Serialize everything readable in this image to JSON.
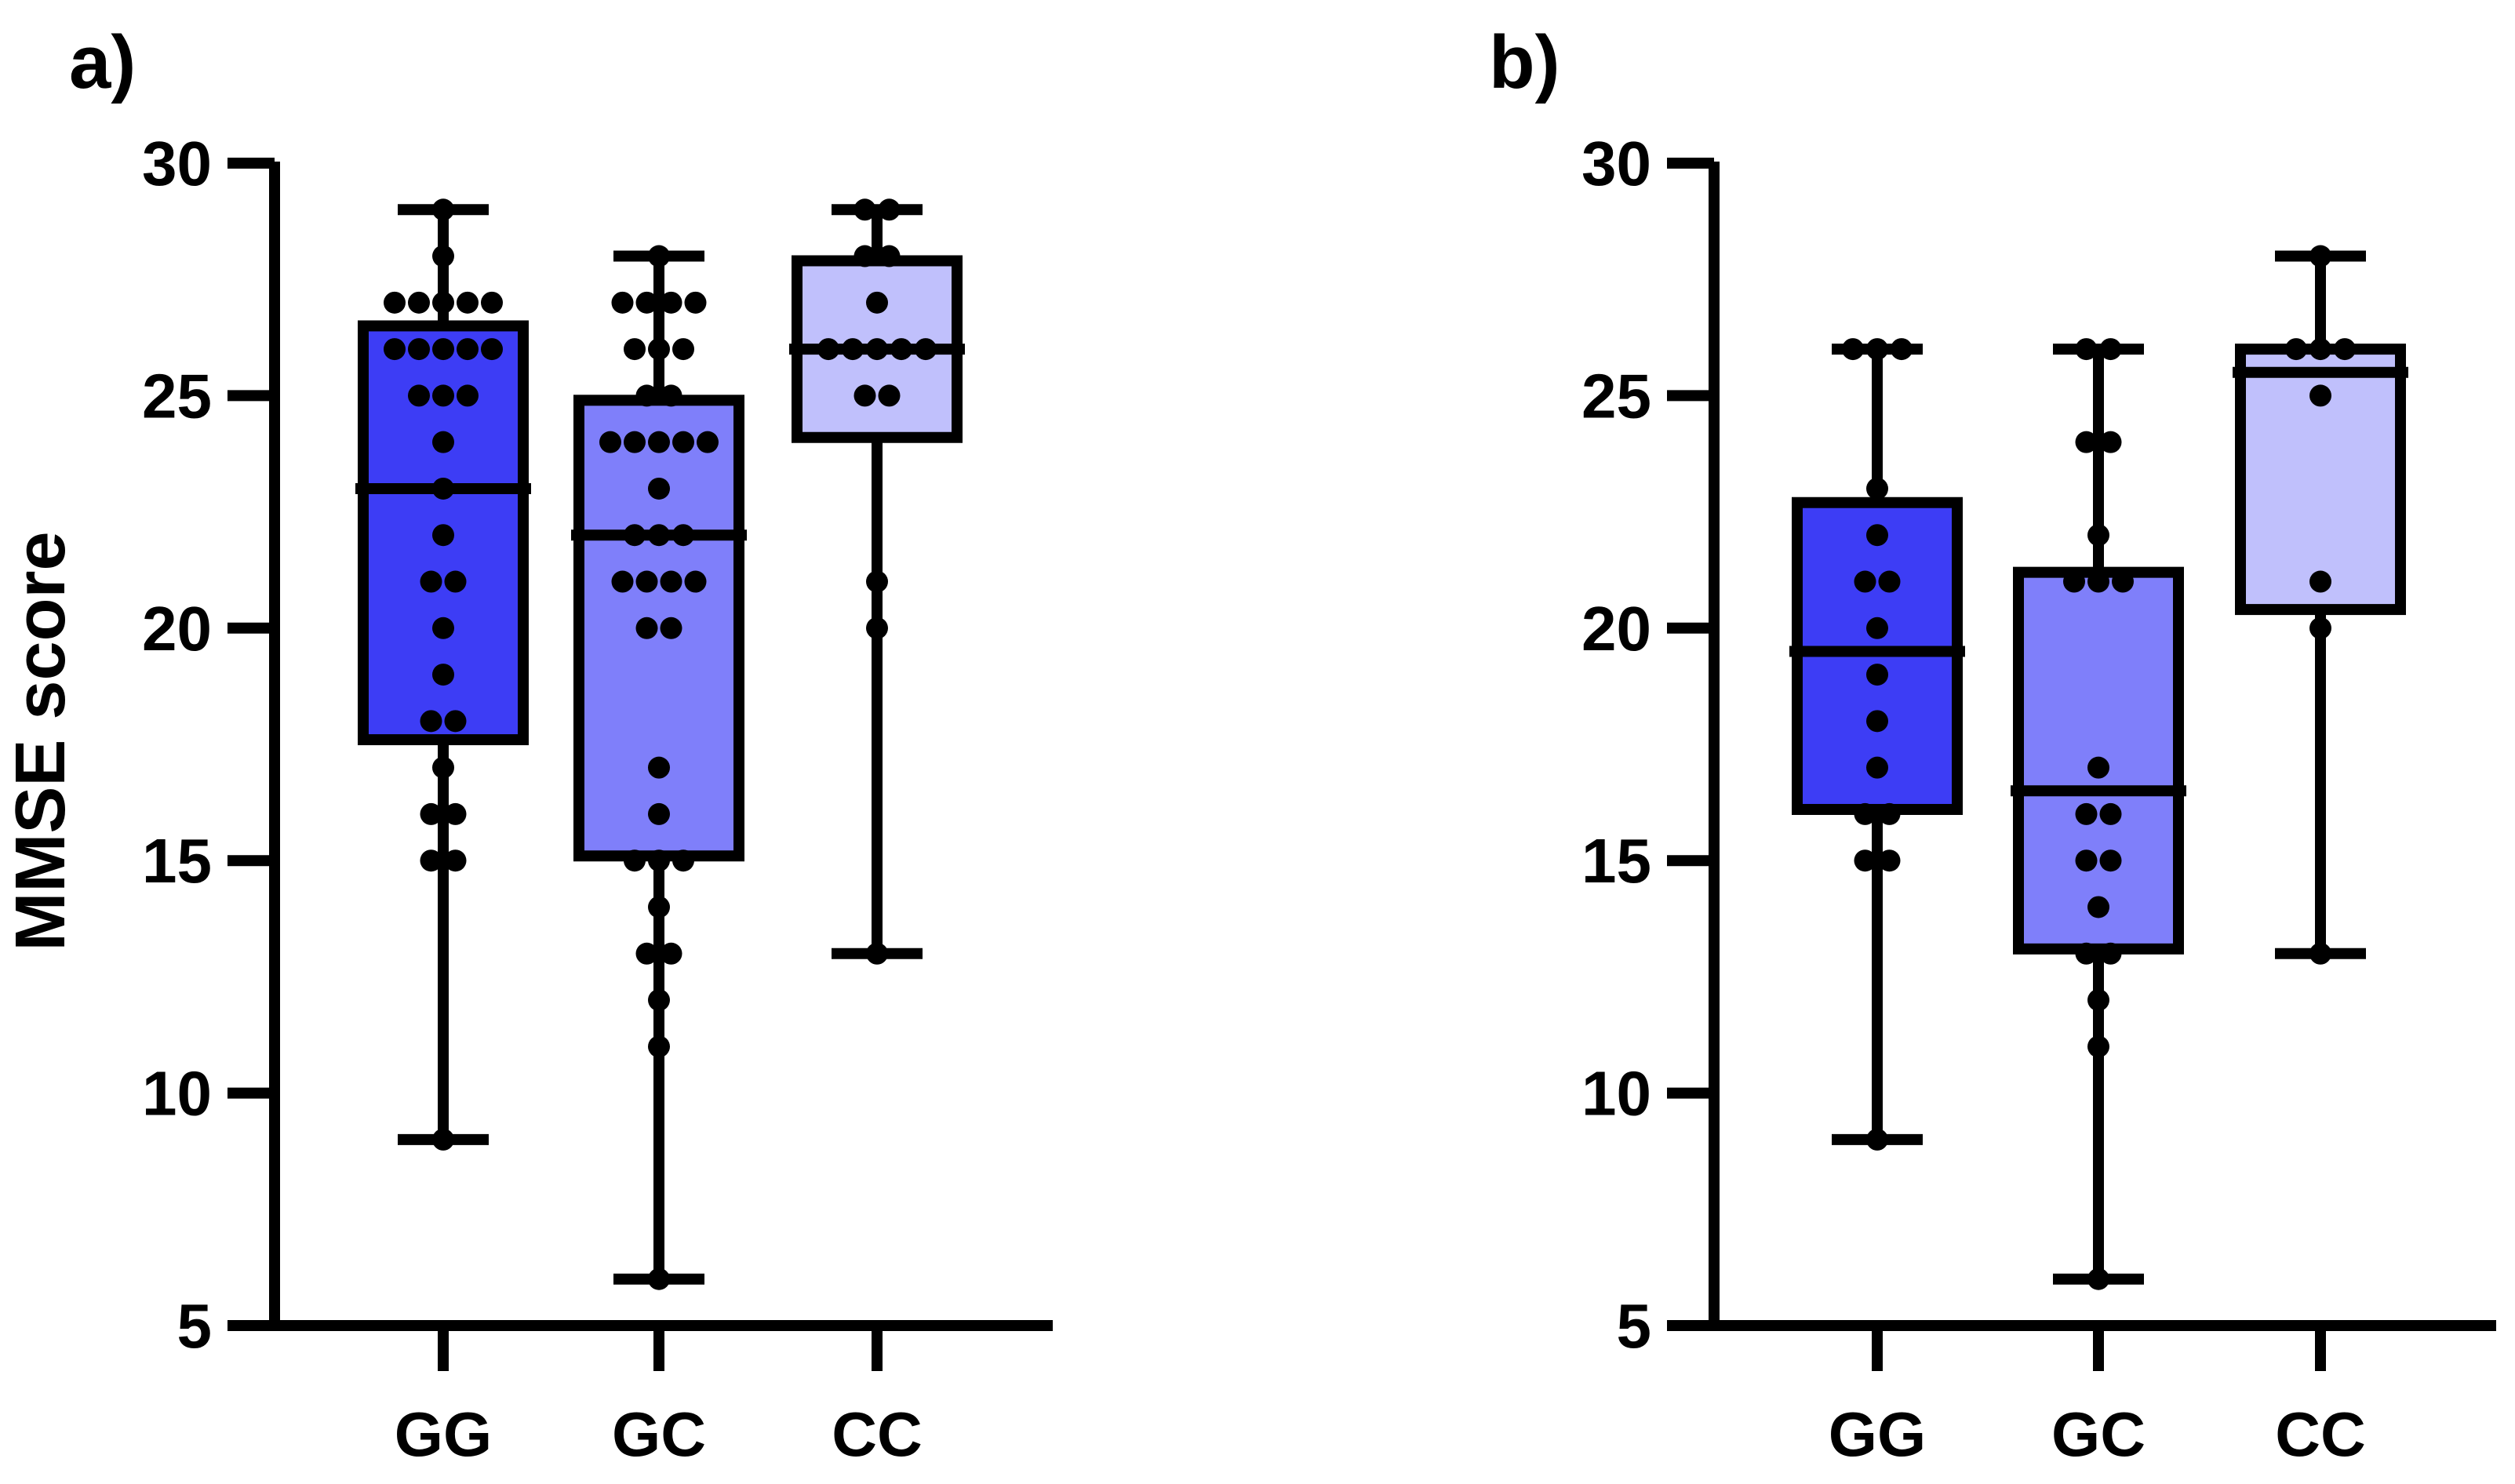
{
  "chart_data": [
    {
      "type": "box",
      "panel_label": "a)",
      "ylabel": "MMSE score",
      "xlabel": "",
      "ylim": [
        5,
        30
      ],
      "yticks": [
        5,
        10,
        15,
        20,
        25,
        30
      ],
      "categories": [
        "GG",
        "GC",
        "CC"
      ],
      "colors": [
        "#3D3DF5",
        "#7F7FFA",
        "#C0C0FC"
      ],
      "boxes": [
        {
          "category": "GG",
          "whisker_low": 9,
          "q1": 17.6,
          "median": 23,
          "q3": 26.5,
          "whisker_high": 29
        },
        {
          "category": "GC",
          "whisker_low": 6,
          "q1": 15.1,
          "median": 22,
          "q3": 24.9,
          "whisker_high": 28
        },
        {
          "category": "CC",
          "whisker_low": 13,
          "q1": 24.1,
          "median": 26,
          "q3": 27.9,
          "whisker_high": 29
        }
      ],
      "points": [
        [
          29,
          28,
          27,
          27,
          27,
          27,
          27,
          26,
          26,
          26,
          26,
          26,
          25,
          25,
          25,
          24,
          23,
          22,
          21,
          21,
          20,
          19,
          18,
          18,
          17,
          16,
          16,
          15,
          15,
          9
        ],
        [
          28,
          27,
          27,
          27,
          27,
          26,
          26,
          26,
          25,
          25,
          24,
          24,
          24,
          24,
          24,
          23,
          22,
          22,
          22,
          21,
          21,
          21,
          21,
          20,
          20,
          17,
          16,
          15,
          15,
          15,
          14,
          13,
          13,
          12,
          11,
          6
        ],
        [
          29,
          29,
          28,
          28,
          27,
          26,
          26,
          26,
          26,
          26,
          25,
          25,
          21,
          20,
          13
        ]
      ]
    },
    {
      "type": "box",
      "panel_label": "b)",
      "ylabel": "",
      "xlabel": "",
      "ylim": [
        5,
        30
      ],
      "yticks": [
        5,
        10,
        15,
        20,
        25,
        30
      ],
      "categories": [
        "GG",
        "GC",
        "CC"
      ],
      "colors": [
        "#3D3DF5",
        "#7F7FFA",
        "#C0C0FC"
      ],
      "boxes": [
        {
          "category": "GG",
          "whisker_low": 9,
          "q1": 16.1,
          "median": 19.5,
          "q3": 22.7,
          "whisker_high": 26
        },
        {
          "category": "GC",
          "whisker_low": 6,
          "q1": 13.1,
          "median": 16.5,
          "q3": 21.2,
          "whisker_high": 26
        },
        {
          "category": "CC",
          "whisker_low": 13,
          "q1": 20.4,
          "median": 25.5,
          "q3": 26,
          "whisker_high": 28
        }
      ],
      "points": [
        [
          26,
          26,
          26,
          23,
          22,
          21,
          21,
          20,
          19,
          18,
          17,
          16,
          16,
          15,
          15,
          9
        ],
        [
          26,
          26,
          24,
          24,
          22,
          21,
          21,
          21,
          17,
          16,
          16,
          15,
          15,
          14,
          13,
          13,
          12,
          11,
          6
        ],
        [
          28,
          26,
          26,
          26,
          25,
          21,
          20,
          13
        ]
      ]
    }
  ]
}
